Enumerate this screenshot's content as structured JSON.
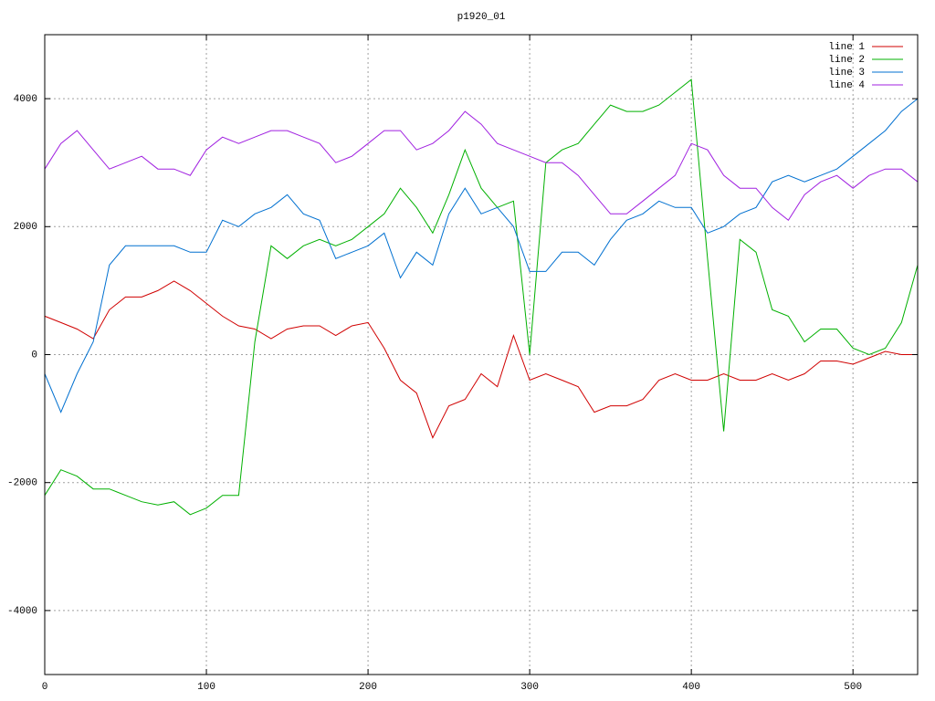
{
  "chart_data": {
    "type": "line",
    "title": "p1920_01",
    "x": [
      0,
      10,
      20,
      30,
      40,
      50,
      60,
      70,
      80,
      90,
      100,
      110,
      120,
      130,
      140,
      150,
      160,
      170,
      180,
      190,
      200,
      210,
      220,
      230,
      240,
      250,
      260,
      270,
      280,
      290,
      300,
      310,
      320,
      330,
      340,
      350,
      360,
      370,
      380,
      390,
      400,
      410,
      420,
      430,
      440,
      450,
      460,
      470,
      480,
      490,
      500,
      510,
      520,
      530,
      540
    ],
    "xlim": [
      0,
      540
    ],
    "xticks": [
      0,
      100,
      200,
      300,
      400,
      500
    ],
    "ylim": [
      -5000,
      5000
    ],
    "yticks": [
      -4000,
      -2000,
      0,
      2000,
      4000
    ],
    "grid": true,
    "legend": "top-right",
    "series": [
      {
        "name": "line 1",
        "color": "#d00000",
        "values": [
          600,
          500,
          400,
          250,
          700,
          900,
          900,
          1000,
          1150,
          1000,
          800,
          600,
          450,
          400,
          250,
          400,
          450,
          450,
          300,
          450,
          500,
          100,
          -400,
          -600,
          -1300,
          -800,
          -700,
          -300,
          -500,
          300,
          -400,
          -300,
          -400,
          -500,
          -900,
          -800,
          -800,
          -700,
          -400,
          -300,
          -400,
          -400,
          -300,
          -400,
          -400,
          -300,
          -400,
          -300,
          -100,
          -100,
          -150,
          -50,
          50,
          0,
          0
        ]
      },
      {
        "name": "line 2",
        "color": "#00b000",
        "values": [
          -2200,
          -1800,
          -1900,
          -2100,
          -2100,
          -2200,
          -2300,
          -2350,
          -2300,
          -2500,
          -2400,
          -2200,
          -2200,
          200,
          1700,
          1500,
          1700,
          1800,
          1700,
          1800,
          2000,
          2200,
          2600,
          2300,
          1900,
          2500,
          3200,
          2600,
          2300,
          2400,
          0,
          3000,
          3200,
          3300,
          3600,
          3900,
          3800,
          3800,
          3900,
          4100,
          4300,
          1500,
          -1200,
          1800,
          1600,
          700,
          600,
          200,
          400,
          400,
          100,
          0,
          100,
          500,
          1400
        ]
      },
      {
        "name": "line 3",
        "color": "#0070d0",
        "values": [
          -300,
          -900,
          -300,
          200,
          1400,
          1700,
          1700,
          1700,
          1700,
          1600,
          1600,
          2100,
          2000,
          2200,
          2300,
          2500,
          2200,
          2100,
          1500,
          1600,
          1700,
          1900,
          1200,
          1600,
          1400,
          2200,
          2600,
          2200,
          2300,
          2000,
          1300,
          1300,
          1600,
          1600,
          1400,
          1800,
          2100,
          2200,
          2400,
          2300,
          2300,
          1900,
          2000,
          2200,
          2300,
          2700,
          2800,
          2700,
          2800,
          2900,
          3100,
          3300,
          3500,
          3800,
          4000
        ]
      },
      {
        "name": "line 4",
        "color": "#a020e0",
        "values": [
          2900,
          3300,
          3500,
          3200,
          2900,
          3000,
          3100,
          2900,
          2900,
          2800,
          3200,
          3400,
          3300,
          3400,
          3500,
          3500,
          3400,
          3300,
          3000,
          3100,
          3300,
          3500,
          3500,
          3200,
          3300,
          3500,
          3800,
          3600,
          3300,
          3200,
          3100,
          3000,
          3000,
          2800,
          2500,
          2200,
          2200,
          2400,
          2600,
          2800,
          3300,
          3200,
          2800,
          2600,
          2600,
          2300,
          2100,
          2500,
          2700,
          2800,
          2600,
          2800,
          2900,
          2900,
          2700
        ]
      }
    ]
  }
}
